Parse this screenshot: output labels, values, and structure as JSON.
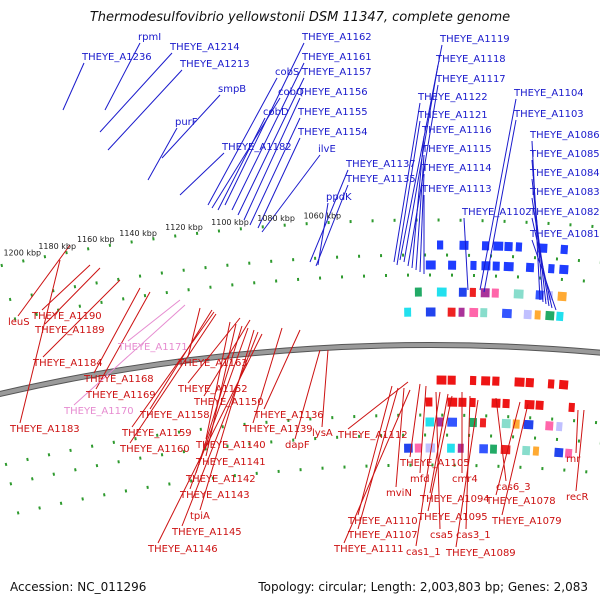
{
  "title": "Thermodesulfovibrio yellowstonii DSM 11347, complete genome",
  "footer": {
    "accession": "Accession: NC_011296",
    "topology": "Topology: circular; Length: 2,003,803 bp; Genes: 2,083"
  },
  "colors": {
    "forward_label": "#1a1acc",
    "reverse_label": "#cc1111",
    "pseudo_label": "#e68bd0",
    "backbone": "#888888",
    "tick_dots": "#2e9a2e"
  },
  "ticks": [
    "1200 kbp",
    "1180 kbp",
    "1160 kbp",
    "1140 kbp",
    "1120 kbp",
    "1100 kbp",
    "1080 kbp",
    "1060 kbp"
  ],
  "labels_top": [
    "rpmI",
    "THEYE_A1236",
    "THEYE_A1214",
    "THEYE_A1213",
    "smpB",
    "purF",
    "THEYE_A1182",
    "cobS",
    "cobQ",
    "cobD",
    "THEYE_A1162",
    "THEYE_A1161",
    "THEYE_A1157",
    "THEYE_A1156",
    "THEYE_A1155",
    "THEYE_A1154",
    "ilvE",
    "ppdK",
    "THEYE_A1137",
    "THEYE_A1135",
    "THEYE_A1119",
    "THEYE_A1118",
    "THEYE_A1117",
    "THEYE_A1122",
    "THEYE_A1121",
    "THEYE_A1116",
    "THEYE_A1115",
    "THEYE_A1114",
    "THEYE_A1113",
    "THEYE_A1104",
    "THEYE_A1103",
    "THEYE_A1102",
    "THEYE_A1086",
    "THEYE_A1085",
    "THEYE_A1084",
    "THEYE_A1083",
    "THEYE_A1082",
    "THEYE_A1081"
  ],
  "labels_bottom": [
    "leuS",
    "THEYE_A1190",
    "THEYE_A1189",
    "THEYE_A1171",
    "THEYE_A1184",
    "THEYE_A1168",
    "THEYE_A1163",
    "THEYE_A1169",
    "THEYE_A1170",
    "THEYE_A1152",
    "THEYE_A1150",
    "THEYE_A1183",
    "THEYE_A1158",
    "THEYE_A1159",
    "THEYE_A1160",
    "THEYE_A1139",
    "THEYE_A1136",
    "THEYE_A1140",
    "THEYE_A1141",
    "THEYE_A1142",
    "THEYE_A1143",
    "tpiA",
    "THEYE_A1145",
    "THEYE_A1146",
    "dapF",
    "lysA",
    "THEYE_A1112",
    "THEYE_A1105",
    "mfd",
    "mviN",
    "cmr4",
    "THEYE_A1094",
    "THEYE_A1095",
    "THEYE_A1110",
    "THEYE_A1107",
    "csa5",
    "cas6_3",
    "cas3_1",
    "THEYE_A1111",
    "cas1_1",
    "THEYE_A1089",
    "THEYE_A1078",
    "THEYE_A1079",
    "rnr",
    "recR"
  ]
}
